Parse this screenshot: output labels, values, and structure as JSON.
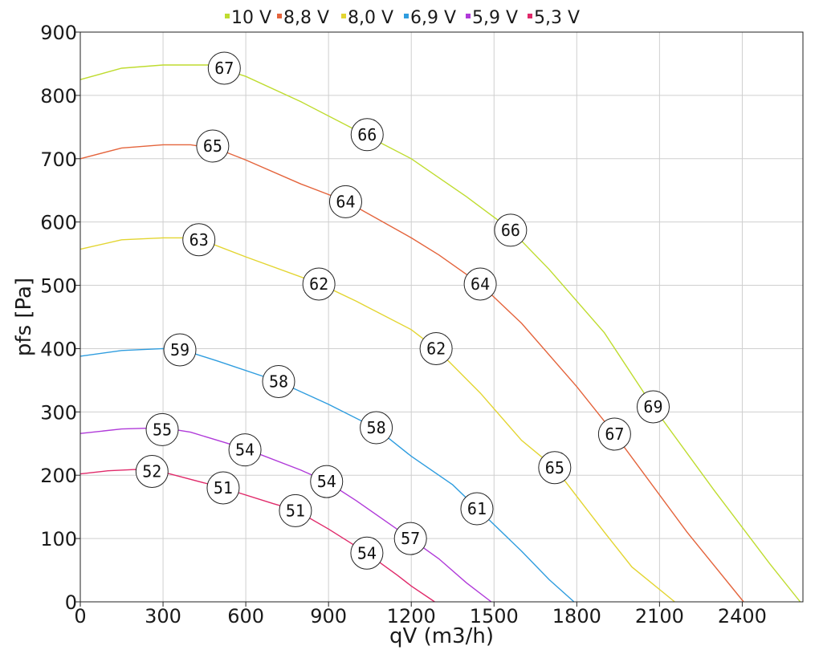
{
  "chart_data": {
    "type": "line",
    "xlabel": "qV (m3/h)",
    "ylabel": "pfs [Pa]",
    "xlim": [
      0,
      2620
    ],
    "ylim": [
      0,
      900
    ],
    "x_ticks": [
      0,
      300,
      600,
      900,
      1200,
      1500,
      1800,
      2100,
      2400
    ],
    "y_ticks": [
      0,
      100,
      200,
      300,
      400,
      500,
      600,
      700,
      800,
      900
    ],
    "x_tick_labels": [
      "0",
      "300",
      "600",
      "900",
      "1200",
      "1500",
      "1800",
      "2100",
      "2400"
    ],
    "y_tick_labels": [
      "0",
      "100",
      "200",
      "300",
      "400",
      "500",
      "600",
      "700",
      "800",
      "900"
    ],
    "grid": true,
    "legend_position": "top",
    "series": [
      {
        "name": "10 V",
        "color": "#bfdc2f",
        "points": [
          [
            0,
            825
          ],
          [
            150,
            843
          ],
          [
            300,
            848
          ],
          [
            470,
            848
          ],
          [
            600,
            830
          ],
          [
            800,
            790
          ],
          [
            1000,
            745
          ],
          [
            1200,
            700
          ],
          [
            1400,
            640
          ],
          [
            1560,
            588
          ],
          [
            1700,
            525
          ],
          [
            1900,
            425
          ],
          [
            2077,
            308
          ],
          [
            2300,
            175
          ],
          [
            2500,
            60
          ],
          [
            2610,
            0
          ]
        ],
        "labels": [
          {
            "x": 522,
            "y": 843,
            "text": "67"
          },
          {
            "x": 1040,
            "y": 738,
            "text": "66"
          },
          {
            "x": 1560,
            "y": 587,
            "text": "66"
          },
          {
            "x": 2077,
            "y": 308,
            "text": "69"
          }
        ]
      },
      {
        "name": "8,8 V",
        "color": "#e4643c",
        "points": [
          [
            0,
            700
          ],
          [
            150,
            717
          ],
          [
            300,
            722
          ],
          [
            400,
            722
          ],
          [
            500,
            715
          ],
          [
            600,
            698
          ],
          [
            800,
            660
          ],
          [
            962,
            633
          ],
          [
            1200,
            575
          ],
          [
            1300,
            548
          ],
          [
            1450,
            502
          ],
          [
            1600,
            440
          ],
          [
            1800,
            340
          ],
          [
            1937,
            265
          ],
          [
            2200,
            110
          ],
          [
            2405,
            0
          ]
        ],
        "labels": [
          {
            "x": 480,
            "y": 720,
            "text": "65"
          },
          {
            "x": 962,
            "y": 632,
            "text": "64"
          },
          {
            "x": 1450,
            "y": 502,
            "text": "64"
          },
          {
            "x": 1937,
            "y": 265,
            "text": "67"
          }
        ]
      },
      {
        "name": "8,0 V",
        "color": "#e3d531",
        "points": [
          [
            0,
            557
          ],
          [
            150,
            572
          ],
          [
            300,
            575
          ],
          [
            400,
            575
          ],
          [
            450,
            570
          ],
          [
            600,
            545
          ],
          [
            865,
            503
          ],
          [
            1000,
            475
          ],
          [
            1200,
            430
          ],
          [
            1290,
            400
          ],
          [
            1450,
            330
          ],
          [
            1600,
            255
          ],
          [
            1720,
            212
          ],
          [
            1900,
            110
          ],
          [
            2000,
            55
          ],
          [
            2155,
            0
          ]
        ],
        "labels": [
          {
            "x": 430,
            "y": 572,
            "text": "63"
          },
          {
            "x": 865,
            "y": 502,
            "text": "62"
          },
          {
            "x": 1290,
            "y": 400,
            "text": "62"
          },
          {
            "x": 1720,
            "y": 212,
            "text": "65"
          }
        ]
      },
      {
        "name": "6,9 V",
        "color": "#2f9ddf",
        "points": [
          [
            0,
            388
          ],
          [
            150,
            397
          ],
          [
            300,
            400
          ],
          [
            370,
            398
          ],
          [
            500,
            380
          ],
          [
            719,
            348
          ],
          [
            900,
            312
          ],
          [
            1073,
            274
          ],
          [
            1200,
            230
          ],
          [
            1350,
            185
          ],
          [
            1438,
            148
          ],
          [
            1600,
            80
          ],
          [
            1700,
            35
          ],
          [
            1790,
            0
          ]
        ],
        "labels": [
          {
            "x": 361,
            "y": 398,
            "text": "59"
          },
          {
            "x": 719,
            "y": 348,
            "text": "58"
          },
          {
            "x": 1073,
            "y": 275,
            "text": "58"
          },
          {
            "x": 1438,
            "y": 147,
            "text": "61"
          }
        ]
      },
      {
        "name": "5,9 V",
        "color": "#b03ad9",
        "points": [
          [
            0,
            266
          ],
          [
            150,
            273
          ],
          [
            300,
            275
          ],
          [
            400,
            268
          ],
          [
            597,
            242
          ],
          [
            800,
            208
          ],
          [
            893,
            190
          ],
          [
            1000,
            160
          ],
          [
            1197,
            100
          ],
          [
            1300,
            68
          ],
          [
            1400,
            30
          ],
          [
            1490,
            0
          ]
        ],
        "labels": [
          {
            "x": 297,
            "y": 272,
            "text": "55"
          },
          {
            "x": 597,
            "y": 240,
            "text": "54"
          },
          {
            "x": 893,
            "y": 190,
            "text": "54"
          },
          {
            "x": 1197,
            "y": 100,
            "text": "57"
          }
        ]
      },
      {
        "name": "5,3 V",
        "color": "#e02a6a",
        "points": [
          [
            0,
            202
          ],
          [
            100,
            207
          ],
          [
            200,
            209
          ],
          [
            300,
            205
          ],
          [
            518,
            180
          ],
          [
            700,
            155
          ],
          [
            780,
            145
          ],
          [
            900,
            115
          ],
          [
            1039,
            77
          ],
          [
            1150,
            42
          ],
          [
            1200,
            25
          ],
          [
            1285,
            0
          ]
        ],
        "labels": [
          {
            "x": 260,
            "y": 206,
            "text": "52"
          },
          {
            "x": 518,
            "y": 180,
            "text": "51"
          },
          {
            "x": 780,
            "y": 144,
            "text": "51"
          },
          {
            "x": 1039,
            "y": 77,
            "text": "54"
          }
        ]
      }
    ]
  }
}
